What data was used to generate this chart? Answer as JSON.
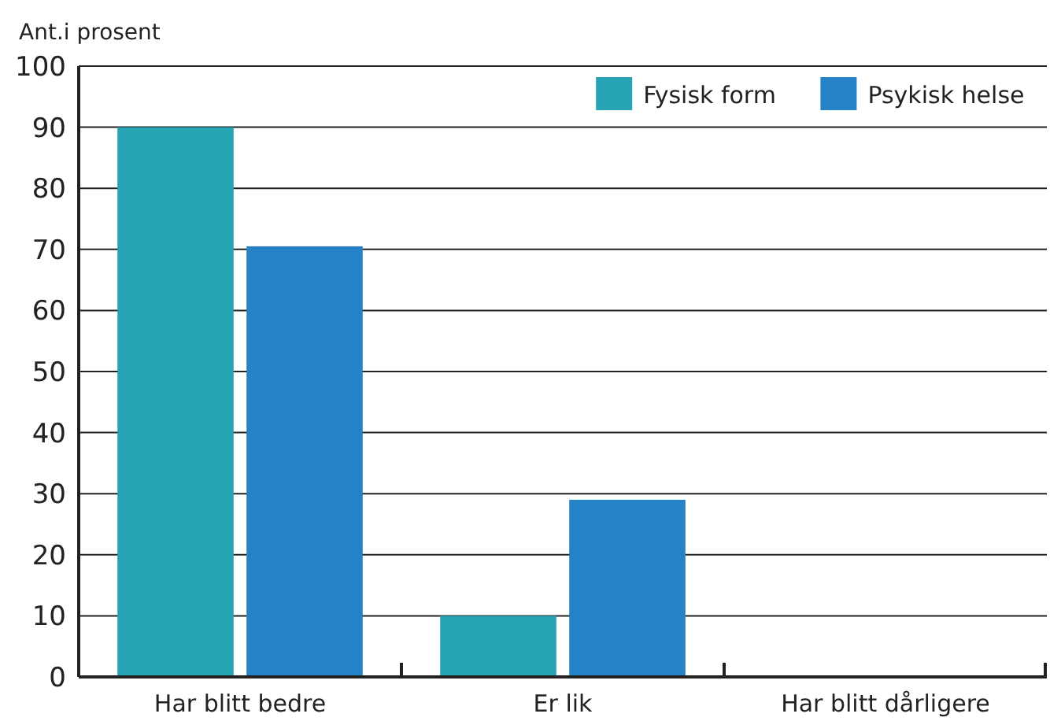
{
  "chart_data": {
    "type": "bar",
    "ylabel": "Ant.i prosent",
    "categories": [
      "Har blitt bedre",
      "Er lik",
      "Har blitt dårligere"
    ],
    "series": [
      {
        "name": "Fysisk form",
        "color": "#27a4b4",
        "values": [
          90,
          10,
          0
        ]
      },
      {
        "name": "Psykisk helse",
        "color": "#2582c6",
        "values": [
          70.5,
          29,
          0
        ]
      }
    ],
    "ylim": [
      0,
      100
    ],
    "yticks": [
      0,
      10,
      20,
      30,
      40,
      50,
      60,
      70,
      80,
      90,
      100
    ],
    "grid": "y",
    "legend": "top right"
  }
}
